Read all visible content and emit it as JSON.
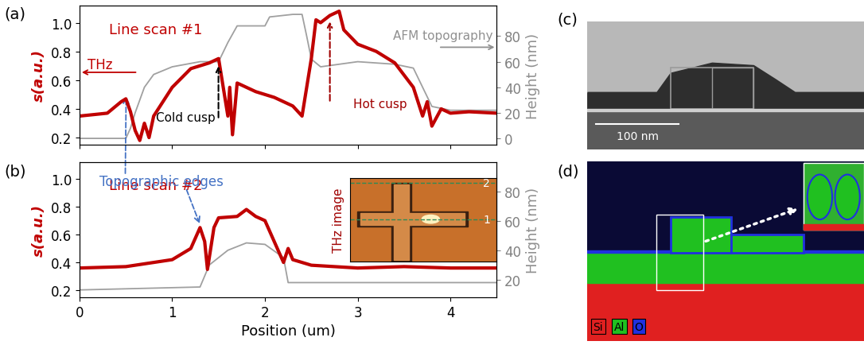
{
  "chart_data": [
    {
      "type": "line",
      "panel": "(a)",
      "label": "Line scan #1",
      "xlim": [
        0,
        4.5
      ],
      "xticks": [
        0,
        1,
        2,
        3,
        4
      ],
      "ylim": [
        0.15,
        1.12
      ],
      "yticks": [
        0.2,
        0.4,
        0.6,
        0.8,
        1.0
      ],
      "y2lim": [
        -5,
        104
      ],
      "y2ticks": [
        0,
        20,
        40,
        60,
        80
      ],
      "y_label": "s(a.u.)",
      "y2_label": "Height (nm)",
      "tick_labels": "y",
      "annotations": {
        "cold": "Cold cusp",
        "hot": "Hot cusp"
      },
      "series": [
        {
          "name": "AFM topography",
          "color": "#a0a0a0",
          "axis": "y2",
          "line_style": "solid",
          "x": [
            0,
            0.5,
            0.55,
            0.6,
            0.7,
            0.8,
            1.0,
            1.3,
            1.5,
            1.6,
            1.7,
            2.0,
            2.05,
            2.3,
            2.4,
            2.45,
            2.5,
            2.6,
            2.8,
            3.0,
            3.4,
            3.6,
            3.7,
            3.8,
            4.0,
            4.5
          ],
          "values": [
            0,
            0,
            8,
            20,
            40,
            50,
            56,
            60,
            60,
            75,
            88,
            88,
            95,
            97,
            97,
            80,
            62,
            56,
            58,
            60,
            58,
            55,
            40,
            25,
            22,
            22
          ]
        },
        {
          "name": "THz",
          "color": "#c00000",
          "axis": "y",
          "line_style": "solid",
          "x": [
            0,
            0.15,
            0.3,
            0.45,
            0.5,
            0.55,
            0.6,
            0.65,
            0.7,
            0.75,
            0.8,
            1.0,
            1.2,
            1.4,
            1.5,
            1.55,
            1.6,
            1.62,
            1.65,
            1.7,
            1.9,
            2.1,
            2.3,
            2.4,
            2.5,
            2.55,
            2.6,
            2.7,
            2.8,
            2.85,
            3.0,
            3.2,
            3.4,
            3.6,
            3.7,
            3.75,
            3.8,
            3.9,
            4.0,
            4.2,
            4.5
          ],
          "values": [
            0.35,
            0.36,
            0.37,
            0.45,
            0.47,
            0.38,
            0.25,
            0.18,
            0.3,
            0.2,
            0.35,
            0.55,
            0.68,
            0.72,
            0.75,
            0.55,
            0.35,
            0.55,
            0.22,
            0.58,
            0.52,
            0.48,
            0.42,
            0.35,
            0.75,
            1.02,
            1.0,
            1.05,
            1.08,
            0.95,
            0.85,
            0.8,
            0.72,
            0.55,
            0.35,
            0.45,
            0.28,
            0.4,
            0.37,
            0.38,
            0.37
          ]
        }
      ]
    },
    {
      "type": "line",
      "panel": "(b)",
      "label": "Line scan #2",
      "xlim": [
        0,
        4.5
      ],
      "xticks": [
        0,
        1,
        2,
        3,
        4
      ],
      "ylim": [
        0.15,
        1.12
      ],
      "yticks": [
        0.2,
        0.4,
        0.6,
        0.8,
        1.0
      ],
      "y2lim": [
        8,
        100
      ],
      "y2ticks": [
        20,
        40,
        60,
        80
      ],
      "x_label": "Position (um)",
      "y_label": "s(a.u.)",
      "y2_label": "Height (nm)",
      "annotations": {
        "edges": "Topographic edges"
      },
      "inset": {
        "title": "THz image",
        "lines": [
          "1",
          "2"
        ]
      },
      "series": [
        {
          "name": "AFM topography",
          "color": "#a0a0a0",
          "axis": "y2",
          "line_style": "solid",
          "x": [
            0,
            1.3,
            1.4,
            1.6,
            1.8,
            2.0,
            2.2,
            2.25,
            2.5,
            4.5
          ],
          "values": [
            13,
            15,
            30,
            40,
            45,
            44,
            35,
            18,
            18,
            18
          ]
        },
        {
          "name": "THz",
          "color": "#c00000",
          "axis": "y",
          "line_style": "solid",
          "x": [
            0,
            0.5,
            1.0,
            1.2,
            1.3,
            1.35,
            1.38,
            1.45,
            1.5,
            1.7,
            1.8,
            1.9,
            2.0,
            2.1,
            2.2,
            2.25,
            2.3,
            2.5,
            3.0,
            3.5,
            4.0,
            4.5
          ],
          "values": [
            0.36,
            0.37,
            0.42,
            0.5,
            0.65,
            0.55,
            0.35,
            0.65,
            0.72,
            0.73,
            0.78,
            0.73,
            0.7,
            0.55,
            0.4,
            0.5,
            0.42,
            0.38,
            0.36,
            0.37,
            0.36,
            0.36
          ]
        }
      ]
    }
  ],
  "images": {
    "c": {
      "panel": "(c)",
      "scale_bar": "100 nm"
    },
    "d": {
      "panel": "(d)",
      "elements": [
        {
          "name": "Si",
          "color": "#e02020"
        },
        {
          "name": "Al",
          "color": "#20c020"
        },
        {
          "name": "O",
          "color": "#2030e0"
        }
      ]
    }
  }
}
